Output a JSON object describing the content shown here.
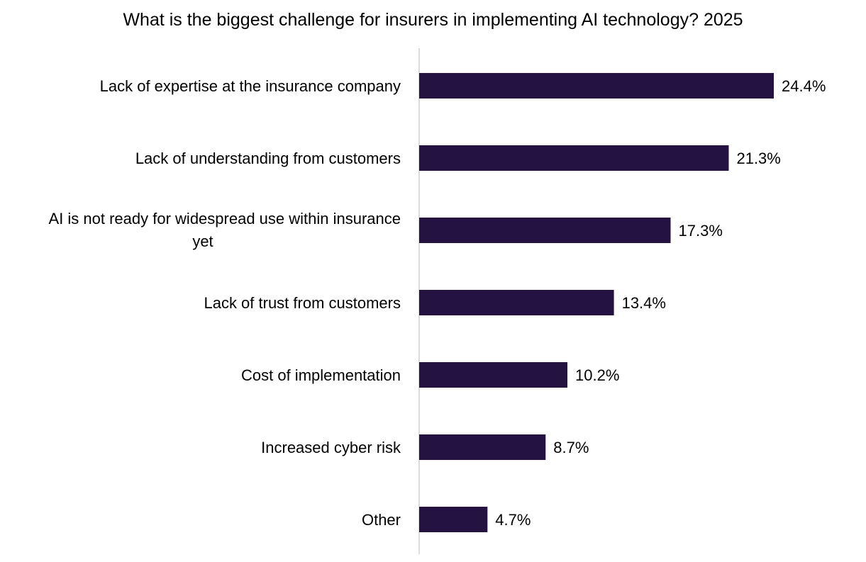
{
  "chart_data": {
    "type": "bar",
    "orientation": "horizontal",
    "title": "What is the biggest challenge for insurers in implementing AI technology? 2025",
    "categories": [
      [
        "Lack of expertise at the insurance company"
      ],
      [
        "Lack of understanding from customers"
      ],
      [
        "AI is not ready for widespread use within insurance",
        "yet"
      ],
      [
        "Lack of trust from customers"
      ],
      [
        "Cost of implementation"
      ],
      [
        "Increased cyber risk"
      ],
      [
        "Other"
      ]
    ],
    "values": [
      24.4,
      21.3,
      17.3,
      13.4,
      10.2,
      8.7,
      4.7
    ],
    "value_labels": [
      "24.4%",
      "21.3%",
      "17.3%",
      "13.4%",
      "10.2%",
      "8.7%",
      "4.7%"
    ],
    "unit": "%",
    "xlim": [
      0,
      25
    ],
    "grid": false,
    "legend": "none",
    "colors": {
      "bar": "#241242",
      "axis": "#d0d0d0",
      "text": "#000000"
    }
  }
}
